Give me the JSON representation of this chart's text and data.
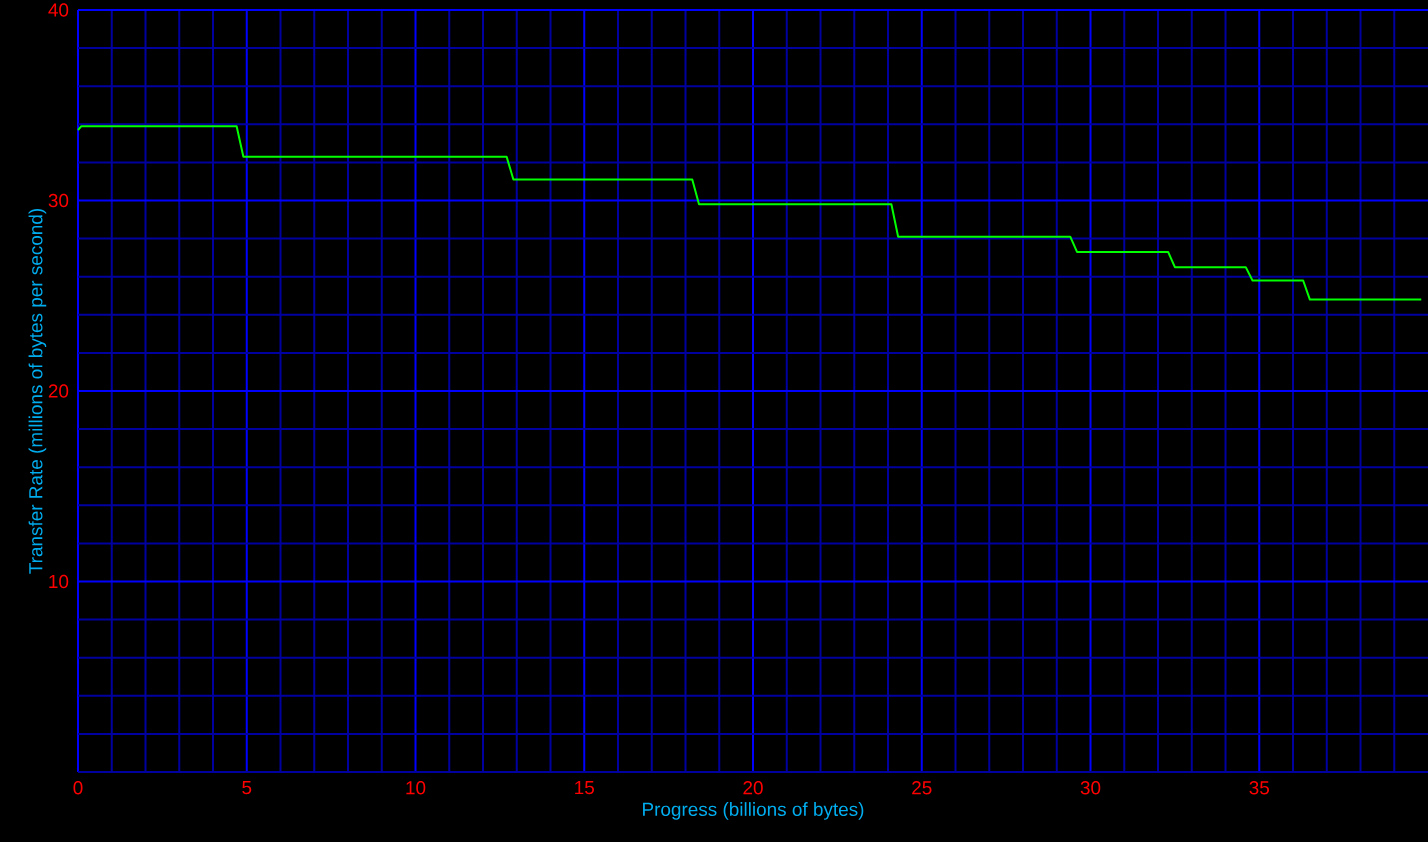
{
  "chart_data": {
    "type": "line",
    "xlabel": "Progress (billions of bytes)",
    "ylabel": "Transfer Rate (millions of bytes per second)",
    "x": [
      0,
      0.1,
      4.7,
      4.9,
      12.7,
      12.9,
      18.2,
      18.4,
      24.1,
      24.3,
      29.4,
      29.6,
      32.3,
      32.5,
      34.6,
      34.8,
      36.3,
      36.5,
      39.8
    ],
    "series": [
      {
        "color": "#00ff00",
        "values": [
          33.7,
          33.9,
          33.9,
          32.3,
          32.3,
          31.1,
          31.1,
          29.8,
          29.8,
          28.1,
          28.1,
          27.3,
          27.3,
          26.5,
          26.5,
          25.8,
          25.8,
          24.8,
          24.8
        ]
      }
    ],
    "xlim": [
      0,
      40
    ],
    "ylim": [
      0,
      40
    ],
    "xticks": [
      0,
      {
        "value": 1,
        "label": null
      },
      {
        "value": 2,
        "label": null
      },
      {
        "value": 3,
        "label": null
      },
      {
        "value": 4,
        "label": null
      },
      5,
      {
        "value": 6,
        "label": null
      },
      {
        "value": 7,
        "label": null
      },
      {
        "value": 8,
        "label": null
      },
      {
        "value": 9,
        "label": null
      },
      10,
      {
        "value": 11,
        "label": null
      },
      {
        "value": 12,
        "label": null
      },
      {
        "value": 13,
        "label": null
      },
      {
        "value": 14,
        "label": null
      },
      15,
      {
        "value": 16,
        "label": null
      },
      {
        "value": 17,
        "label": null
      },
      {
        "value": 18,
        "label": null
      },
      {
        "value": 19,
        "label": null
      },
      20,
      {
        "value": 21,
        "label": null
      },
      {
        "value": 22,
        "label": null
      },
      {
        "value": 23,
        "label": null
      },
      {
        "value": 24,
        "label": null
      },
      25,
      {
        "value": 26,
        "label": null
      },
      {
        "value": 27,
        "label": null
      },
      {
        "value": 28,
        "label": null
      },
      {
        "value": 29,
        "label": null
      },
      30,
      {
        "value": 31,
        "label": null
      },
      {
        "value": 32,
        "label": null
      },
      {
        "value": 33,
        "label": null
      },
      {
        "value": 34,
        "label": null
      },
      35,
      {
        "value": 36,
        "label": null
      },
      {
        "value": 37,
        "label": null
      },
      {
        "value": 38,
        "label": null
      },
      {
        "value": 39,
        "label": null
      }
    ],
    "yticks": [
      {
        "value": 0,
        "label": null
      },
      {
        "value": 2,
        "label": null
      },
      {
        "value": 4,
        "label": null
      },
      {
        "value": 6,
        "label": null
      },
      {
        "value": 8,
        "label": null
      },
      10,
      {
        "value": 12,
        "label": null
      },
      {
        "value": 14,
        "label": null
      },
      {
        "value": 16,
        "label": null
      },
      {
        "value": 18,
        "label": null
      },
      20,
      {
        "value": 22,
        "label": null
      },
      {
        "value": 24,
        "label": null
      },
      {
        "value": 26,
        "label": null
      },
      {
        "value": 28,
        "label": null
      },
      30,
      {
        "value": 32,
        "label": null
      },
      {
        "value": 34,
        "label": null
      },
      {
        "value": 36,
        "label": null
      },
      {
        "value": 38,
        "label": null
      },
      40
    ],
    "grid": true,
    "line_style": "solid",
    "marker": "none"
  }
}
